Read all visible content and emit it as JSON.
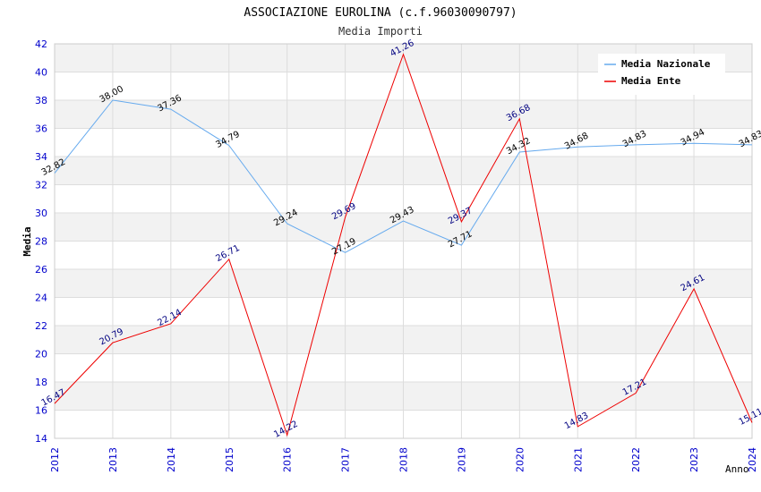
{
  "chart_data": {
    "type": "line",
    "title": "ASSOCIAZIONE EUROLINA (c.f.96030090797)",
    "subtitle": "Media Importi",
    "xlabel": "Anno",
    "ylabel": "Media",
    "ylim": [
      14,
      42
    ],
    "yticks": [
      14,
      16,
      18,
      20,
      22,
      24,
      26,
      28,
      30,
      32,
      34,
      36,
      38,
      40,
      42
    ],
    "x": [
      "2012",
      "2013",
      "2014",
      "2015",
      "2016",
      "2017",
      "2018",
      "2019",
      "2020",
      "2021",
      "2022",
      "2023",
      "2024"
    ],
    "legend_position": "top-right",
    "grid": true,
    "series": [
      {
        "name": "Media Nazionale",
        "color": "#66aaee",
        "values": [
          32.82,
          38.0,
          37.36,
          34.79,
          29.24,
          27.19,
          29.43,
          27.71,
          34.32,
          34.68,
          34.83,
          34.94,
          34.83
        ],
        "labels": [
          "32.82",
          "38.00",
          "37.36",
          "34.79",
          "29.24",
          "27.19",
          "29.43",
          "27.71",
          "34.32",
          "34.68",
          "34.83",
          "34.94",
          "34.83"
        ]
      },
      {
        "name": "Media Ente",
        "color": "#ee0000",
        "values": [
          16.47,
          20.79,
          22.14,
          26.71,
          14.22,
          29.69,
          41.26,
          29.37,
          36.68,
          14.83,
          17.21,
          24.61,
          15.11
        ],
        "labels": [
          "16.47",
          "20.79",
          "22.14",
          "26.71",
          "14.22",
          "29.69",
          "41.26",
          "29.37",
          "36.68",
          "14.83",
          "17.21",
          "24.61",
          "15.11"
        ]
      }
    ]
  }
}
